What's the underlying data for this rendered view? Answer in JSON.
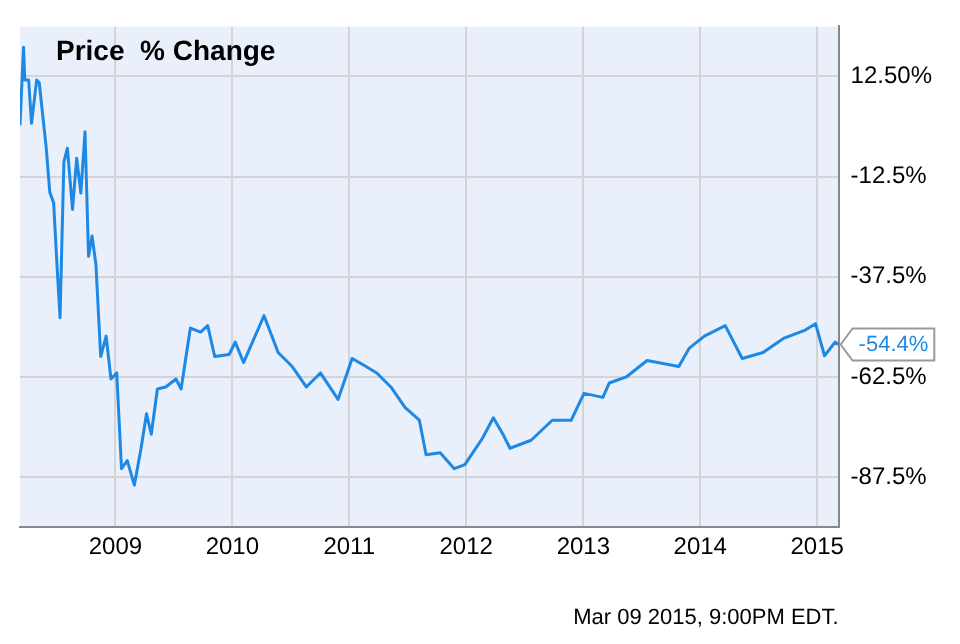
{
  "chart_data": {
    "type": "line",
    "title": "Price  % Change",
    "x": [
      "2008-03-09",
      "2008-03-20",
      "2008-03-24",
      "2008-04-05",
      "2008-04-14",
      "2008-04-30",
      "2008-05-08",
      "2008-05-30",
      "2008-06-10",
      "2008-06-22",
      "2008-07-01",
      "2008-07-12",
      "2008-07-24",
      "2008-08-04",
      "2008-08-20",
      "2008-09-02",
      "2008-09-15",
      "2008-09-28",
      "2008-10-09",
      "2008-10-20",
      "2008-11-01",
      "2008-11-16",
      "2008-12-03",
      "2008-12-18",
      "2009-01-05",
      "2009-01-20",
      "2009-02-07",
      "2009-03-01",
      "2009-03-22",
      "2009-04-08",
      "2009-04-23",
      "2009-05-12",
      "2009-06-07",
      "2009-07-09",
      "2009-07-25",
      "2009-08-23",
      "2009-09-24",
      "2009-10-16",
      "2009-11-07",
      "2009-12-22",
      "2010-01-10",
      "2010-02-05",
      "2010-04-10",
      "2010-05-24",
      "2010-07-07",
      "2010-08-20",
      "2010-10-03",
      "2010-11-27",
      "2011-01-10",
      "2011-02-12",
      "2011-03-28",
      "2011-05-11",
      "2011-06-24",
      "2011-08-08",
      "2011-08-29",
      "2011-10-12",
      "2011-11-25",
      "2011-12-28",
      "2012-02-21",
      "2012-03-26",
      "2012-04-25",
      "2012-05-17",
      "2012-07-22",
      "2012-09-26",
      "2012-11-24",
      "2013-01-03",
      "2013-03-03",
      "2013-03-23",
      "2013-05-15",
      "2013-07-19",
      "2013-10-26",
      "2013-11-28",
      "2014-01-14",
      "2014-03-20",
      "2014-05-12",
      "2014-07-16",
      "2014-09-20",
      "2014-11-25",
      "2014-12-27",
      "2015-01-24",
      "2015-02-26",
      "2015-03-09"
    ],
    "series": [
      {
        "color": "#1e88e5",
        "values": [
          0.3,
          19.8,
          11.6,
          11.6,
          0.8,
          11.6,
          11,
          -5.4,
          -16.4,
          -19,
          -32.4,
          -47.7,
          -8.9,
          -5.4,
          -20.7,
          -7.9,
          -16.6,
          -1.3,
          -32.4,
          -27.3,
          -34.4,
          -57.4,
          -52.3,
          -63,
          -61.5,
          -85.4,
          -83.4,
          -89.5,
          -80.3,
          -71.7,
          -76.8,
          -65.5,
          -65,
          -63,
          -65.5,
          -50.3,
          -51.3,
          -49.7,
          -57.4,
          -56.9,
          -53.8,
          -58.9,
          -47.2,
          -56.4,
          -59.9,
          -65,
          -61.5,
          -68.1,
          -57.9,
          -59.4,
          -61.5,
          -65,
          -70.1,
          -73.3,
          -81.9,
          -81.4,
          -85.4,
          -84.4,
          -77.8,
          -72.7,
          -76.8,
          -80.3,
          -78.3,
          -73.3,
          -73.3,
          -66.6,
          -67.6,
          -64,
          -62.5,
          -58.4,
          -59.9,
          -55.3,
          -52.3,
          -49.7,
          -57.9,
          -56.4,
          -52.8,
          -50.8,
          -49.2,
          -57.2,
          -53.8,
          -54.4
        ]
      }
    ],
    "xlim": [
      "2008-03-09",
      "2015-03-09"
    ],
    "xticks": [
      {
        "value": "2009",
        "label": "2009"
      },
      {
        "value": "2010",
        "label": "2010"
      },
      {
        "value": "2011",
        "label": "2011"
      },
      {
        "value": "2012",
        "label": "2012"
      },
      {
        "value": "2013",
        "label": "2013"
      },
      {
        "value": "2014",
        "label": "2014"
      },
      {
        "value": "2015",
        "label": "2015"
      }
    ],
    "ylim": [
      -100,
      25
    ],
    "yticks": [
      {
        "value": 12.5,
        "label": "12.50%"
      },
      {
        "value": -12.5,
        "label": "-12.5%"
      },
      {
        "value": -37.5,
        "label": "-37.5%"
      },
      {
        "value": -62.5,
        "label": "-62.5%"
      },
      {
        "value": -87.5,
        "label": "-87.5%"
      }
    ],
    "grid": true,
    "legend": false,
    "marker": "none",
    "line_style": "solid",
    "annotations": [
      "-54.4%",
      "Mar 09 2015, 9:00PM EDT."
    ]
  }
}
